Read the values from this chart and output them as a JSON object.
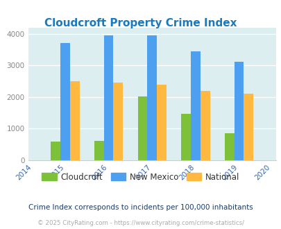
{
  "title": "Cloudcroft Property Crime Index",
  "years": [
    2014,
    2015,
    2016,
    2017,
    2018,
    2019,
    2020
  ],
  "data_years": [
    2015,
    2016,
    2017,
    2018,
    2019
  ],
  "cloudcroft": [
    600,
    620,
    2020,
    1470,
    860
  ],
  "new_mexico": [
    3700,
    3950,
    3950,
    3450,
    3120
  ],
  "national": [
    2510,
    2460,
    2390,
    2190,
    2110
  ],
  "cloudcroft_color": "#7dc13a",
  "new_mexico_color": "#4d9fef",
  "national_color": "#ffb940",
  "bg_color": "#ddeef0",
  "title_color": "#1a7abf",
  "ylim": [
    0,
    4200
  ],
  "yticks": [
    0,
    1000,
    2000,
    3000,
    4000
  ],
  "note": "Crime Index corresponds to incidents per 100,000 inhabitants",
  "footer": "© 2025 CityRating.com - https://www.cityrating.com/crime-statistics/",
  "bar_width": 0.22
}
